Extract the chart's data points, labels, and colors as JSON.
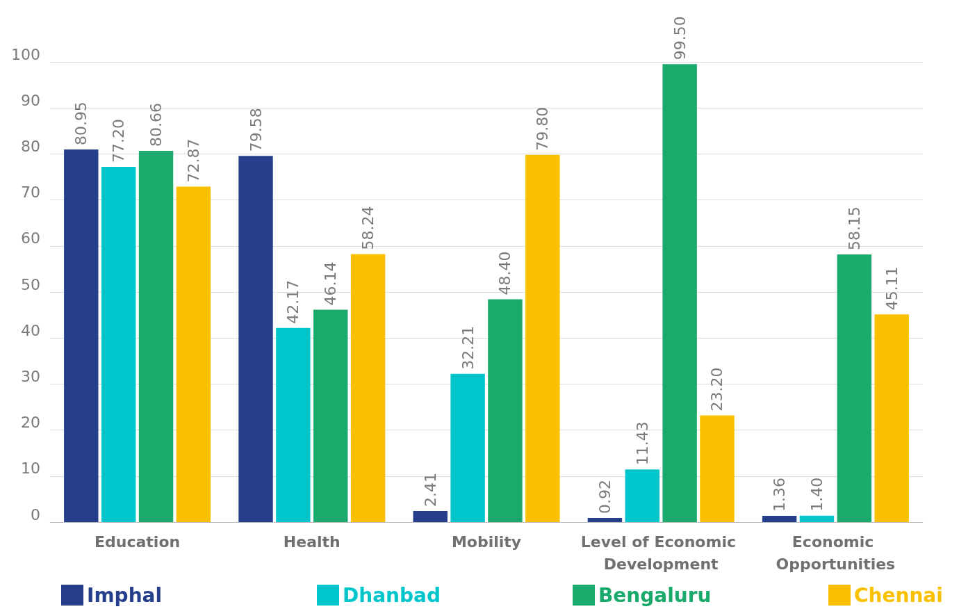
{
  "chart_data": {
    "type": "bar",
    "categories": [
      "Education",
      "Health",
      "Mobility",
      "Level of Economic Development",
      "Economic Opportunities"
    ],
    "series": [
      {
        "name": "Imphal",
        "color": "#263f8c",
        "values": [
          80.95,
          79.58,
          2.41,
          0.92,
          1.36
        ],
        "value_labels": [
          "80.95",
          "79.58",
          "2.41",
          "0.92",
          "1.36"
        ]
      },
      {
        "name": "Dhanbad",
        "color": "#00c6cc",
        "values": [
          77.2,
          42.17,
          32.21,
          11.43,
          1.4
        ],
        "value_labels": [
          "77.20",
          "42.17",
          "32.21",
          "11.43",
          "1.40"
        ]
      },
      {
        "name": "Bengaluru",
        "color": "#1aaa6c",
        "values": [
          80.66,
          46.14,
          48.4,
          99.5,
          58.15
        ],
        "value_labels": [
          "80.66",
          "46.14",
          "48.40",
          "99.50",
          "58.15"
        ]
      },
      {
        "name": "Chennai",
        "color": "#f9c000",
        "values": [
          72.87,
          58.24,
          79.8,
          23.2,
          45.11
        ],
        "value_labels": [
          "72.87",
          "58.24",
          "79.80",
          "23.20",
          "45.11"
        ]
      }
    ],
    "ylim": [
      0,
      100
    ],
    "yticks": [
      0,
      10,
      20,
      30,
      40,
      50,
      60,
      70,
      80,
      90,
      100
    ],
    "grid": "y",
    "legend": "bottom"
  }
}
